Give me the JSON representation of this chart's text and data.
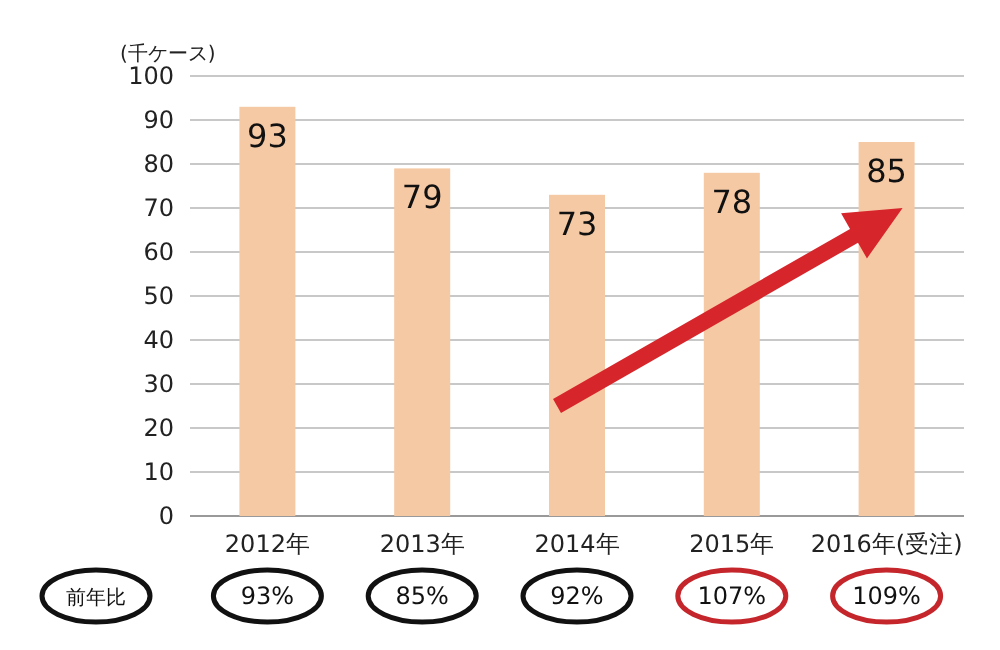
{
  "chart_data": {
    "type": "bar",
    "ylabel": "(千ケース)",
    "categories": [
      "2012年",
      "2013年",
      "2014年",
      "2015年",
      "2016年(受注)"
    ],
    "values": [
      93,
      79,
      73,
      78,
      85
    ],
    "color": "#f6c9a5",
    "ylim": [
      0,
      100
    ],
    "yticks": [
      0,
      10,
      20,
      30,
      40,
      50,
      60,
      70,
      80,
      90,
      100
    ],
    "grid": "y",
    "data_labels": true,
    "annotations": [
      "前年比",
      "93%",
      "85%",
      "92%",
      "107%",
      "109%"
    ]
  }
}
